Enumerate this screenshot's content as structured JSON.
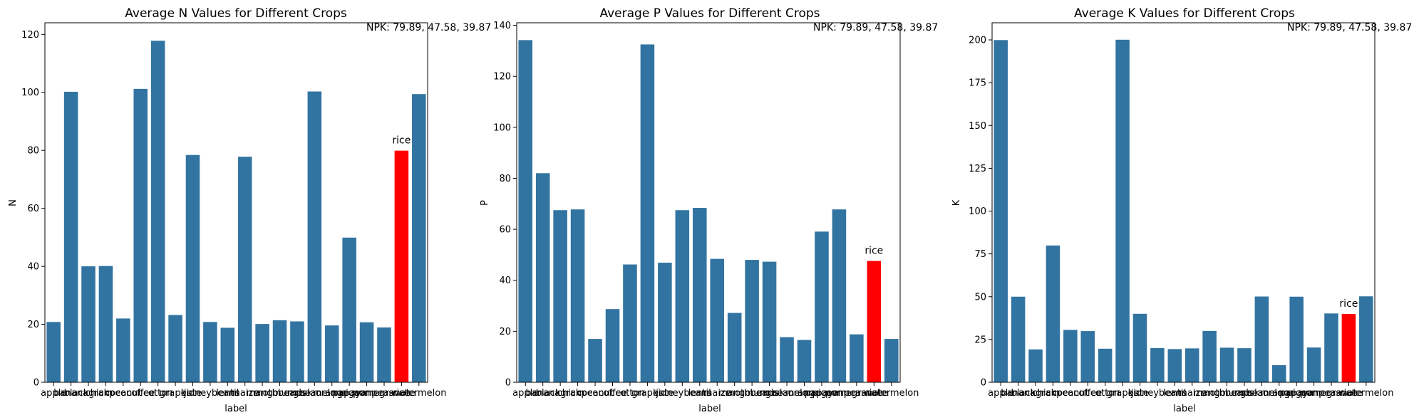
{
  "colors": {
    "bar": "#3274a1",
    "highlight": "#ff0000",
    "frame": "#000000"
  },
  "chart_data": [
    {
      "type": "bar",
      "title": "Average N Values for Different Crops",
      "xlabel": "label",
      "ylabel": "N",
      "ylim": [
        0,
        124
      ],
      "yticks": [
        "0",
        "20",
        "40",
        "60",
        "80",
        "100",
        "120"
      ],
      "categories": [
        "apple",
        "banana",
        "blackgram",
        "chickpea",
        "coconut",
        "coffee",
        "cotton",
        "grapes",
        "jute",
        "kidneybeans",
        "lentil",
        "maize",
        "mango",
        "mothbeans",
        "mungbean",
        "muskmelon",
        "orange",
        "papaya",
        "pigeonpeas",
        "pomegranate",
        "rice",
        "watermelon"
      ],
      "values": [
        20.8,
        100.2,
        40.0,
        40.1,
        22.0,
        101.2,
        117.8,
        23.2,
        78.4,
        20.8,
        18.8,
        77.8,
        20.1,
        21.4,
        21.0,
        100.3,
        19.6,
        49.9,
        20.7,
        18.9,
        79.89,
        99.4
      ],
      "highlight": {
        "category": "rice",
        "label": "rice"
      },
      "annotation": "NPK: 79.89, 47.58, 39.87"
    },
    {
      "type": "bar",
      "title": "Average P Values for Different Crops",
      "xlabel": "label",
      "ylabel": "P",
      "ylim": [
        0,
        141
      ],
      "yticks": [
        "0",
        "20",
        "40",
        "60",
        "80",
        "100",
        "120",
        "140"
      ],
      "categories": [
        "apple",
        "banana",
        "blackgram",
        "chickpea",
        "coconut",
        "coffee",
        "cotton",
        "grapes",
        "jute",
        "kidneybeans",
        "lentil",
        "maize",
        "mango",
        "mothbeans",
        "mungbean",
        "muskmelon",
        "orange",
        "papaya",
        "pigeonpeas",
        "pomegranate",
        "rice",
        "watermelon"
      ],
      "values": [
        134.2,
        82.0,
        67.5,
        67.8,
        17.0,
        28.7,
        46.2,
        132.5,
        46.9,
        67.5,
        68.4,
        48.4,
        27.2,
        48.0,
        47.3,
        17.7,
        16.6,
        59.1,
        67.8,
        18.8,
        47.58,
        17.0
      ],
      "highlight": {
        "category": "rice",
        "label": "rice"
      },
      "annotation": "NPK: 79.89, 47.58, 39.87"
    },
    {
      "type": "bar",
      "title": "Average K Values for Different Crops",
      "xlabel": "label",
      "ylabel": "K",
      "ylim": [
        0,
        210
      ],
      "yticks": [
        "0",
        "25",
        "50",
        "75",
        "100",
        "125",
        "150",
        "175",
        "200"
      ],
      "categories": [
        "apple",
        "banana",
        "blackgram",
        "chickpea",
        "coconut",
        "coffee",
        "cotton",
        "grapes",
        "jute",
        "kidneybeans",
        "lentil",
        "maize",
        "mango",
        "mothbeans",
        "mungbean",
        "muskmelon",
        "orange",
        "papaya",
        "pigeonpeas",
        "pomegranate",
        "rice",
        "watermelon"
      ],
      "values": [
        199.9,
        50.0,
        19.2,
        79.9,
        30.6,
        29.9,
        19.6,
        200.1,
        40.0,
        20.0,
        19.4,
        19.8,
        30.0,
        20.2,
        19.9,
        50.1,
        10.0,
        50.0,
        20.3,
        40.2,
        39.87,
        50.2
      ],
      "highlight": {
        "category": "rice",
        "label": "rice"
      },
      "annotation": "NPK: 79.89, 47.58, 39.87"
    }
  ]
}
